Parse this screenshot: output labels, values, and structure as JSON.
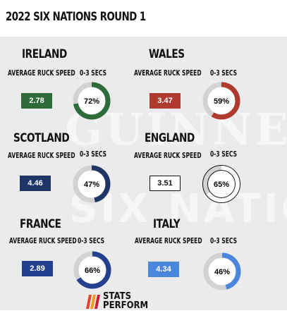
{
  "title": "2022 SIX NATIONS ROUND 1",
  "background_watermark": {
    "line1": "GUINNESS",
    "line2": "SIX NATIONS"
  },
  "labels": {
    "speed": "AVERAGE RUCK SPEED",
    "pct": "0-3 SECS"
  },
  "brand": {
    "line1": "STATS",
    "line2": "PERFORM"
  },
  "chart_data": [
    {
      "type": "pie",
      "team": "IRELAND",
      "average_ruck_speed": "2.78",
      "pct_0_3_secs": 72,
      "pct_label": "72%",
      "color": "#2e6b3b"
    },
    {
      "type": "pie",
      "team": "WALES",
      "average_ruck_speed": "3.47",
      "pct_0_3_secs": 59,
      "pct_label": "59%",
      "color": "#b03a2e"
    },
    {
      "type": "pie",
      "team": "SCOTLAND",
      "average_ruck_speed": "4.46",
      "pct_0_3_secs": 47,
      "pct_label": "47%",
      "color": "#1f3566"
    },
    {
      "type": "pie",
      "team": "ENGLAND",
      "average_ruck_speed": "3.51",
      "pct_0_3_secs": 65,
      "pct_label": "65%",
      "color": "#ffffff"
    },
    {
      "type": "pie",
      "team": "FRANCE",
      "average_ruck_speed": "2.89",
      "pct_0_3_secs": 66,
      "pct_label": "66%",
      "color": "#253f8f"
    },
    {
      "type": "pie",
      "team": "ITALY",
      "average_ruck_speed": "4.34",
      "pct_0_3_secs": 46,
      "pct_label": "46%",
      "color": "#4a86dd"
    }
  ]
}
